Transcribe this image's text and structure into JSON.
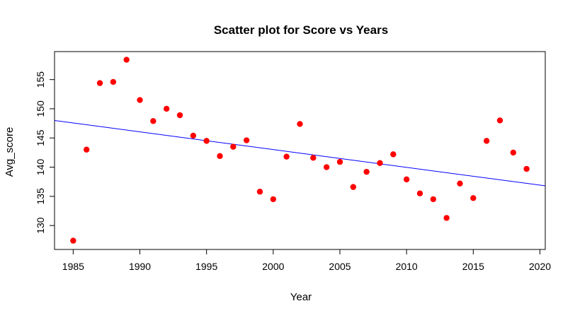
{
  "chart_data": {
    "type": "scatter",
    "title": "Scatter plot for Score vs Years",
    "xlabel": "Year",
    "ylabel": "Avg_score",
    "xlim": [
      1983.6,
      2020.4
    ],
    "ylim": [
      125.9,
      159.8
    ],
    "xticks": [
      "1985",
      "1990",
      "1995",
      "2000",
      "2005",
      "2010",
      "2015",
      "2020"
    ],
    "yticks": [
      "130",
      "135",
      "140",
      "145",
      "150",
      "155"
    ],
    "grid": false,
    "point_color": "#ff0000",
    "line_color": "#0000ff",
    "x": [
      1985,
      1986,
      1987,
      1988,
      1989,
      1990,
      1991,
      1992,
      1993,
      1994,
      1995,
      1996,
      1997,
      1998,
      1999,
      2000,
      2001,
      2002,
      2003,
      2004,
      2005,
      2006,
      2007,
      2008,
      2009,
      2010,
      2011,
      2012,
      2013,
      2014,
      2015,
      2016,
      2017,
      2018,
      2019
    ],
    "y": [
      127.4,
      143.0,
      154.4,
      154.6,
      158.4,
      151.5,
      147.9,
      150.0,
      148.9,
      145.4,
      144.5,
      141.9,
      143.5,
      144.6,
      135.8,
      134.5,
      141.8,
      147.4,
      141.6,
      140.0,
      140.9,
      136.6,
      139.2,
      140.7,
      142.2,
      137.9,
      135.5,
      134.5,
      131.3,
      137.2,
      134.7,
      144.5,
      148.0,
      142.5,
      139.7
    ],
    "regression_line": {
      "x": [
        1983.6,
        2020.4
      ],
      "y": [
        148.0,
        136.8
      ]
    }
  }
}
